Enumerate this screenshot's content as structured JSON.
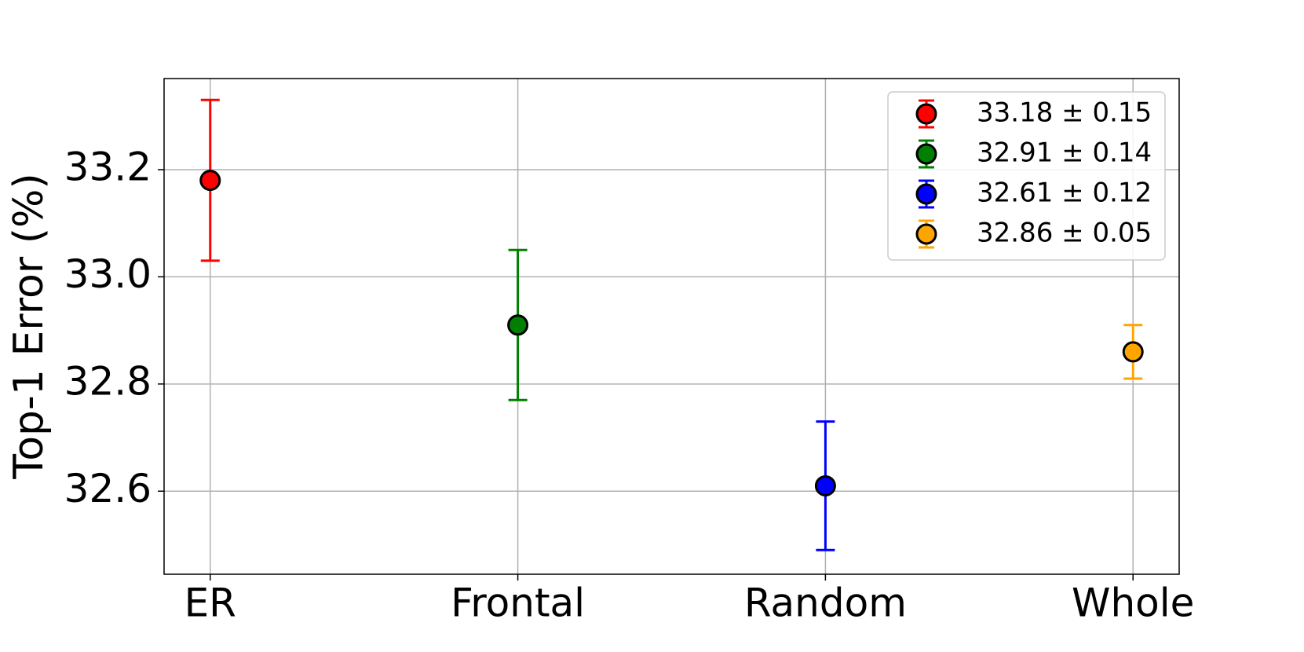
{
  "chart_data": {
    "type": "errorbar",
    "ylabel": "Top-1 Error (%)",
    "categories": [
      "ER",
      "Frontal",
      "Random",
      "Whole"
    ],
    "series": [
      {
        "name": "33.18 ± 0.15",
        "color": "red",
        "values": [
          33.18,
          null,
          null,
          null
        ],
        "errors": [
          0.15,
          null,
          null,
          null
        ]
      },
      {
        "name": "32.91 ± 0.14",
        "color": "green",
        "values": [
          null,
          32.91,
          null,
          null
        ],
        "errors": [
          null,
          0.14,
          null,
          null
        ]
      },
      {
        "name": "32.61 ± 0.12",
        "color": "blue",
        "values": [
          null,
          null,
          32.61,
          null
        ],
        "errors": [
          null,
          null,
          0.12,
          null
        ]
      },
      {
        "name": "32.86 ± 0.05",
        "color": "orange",
        "values": [
          null,
          null,
          null,
          32.86
        ],
        "errors": [
          null,
          null,
          null,
          0.05
        ]
      }
    ],
    "ylim": [
      32.445,
      33.37
    ],
    "yticks": [
      {
        "value": 32.6,
        "label": "32.6"
      },
      {
        "value": 32.8,
        "label": "32.8"
      },
      {
        "value": 33.0,
        "label": "33.0"
      },
      {
        "value": 33.2,
        "label": "33.2"
      }
    ],
    "grid": true,
    "legend": "upper right"
  }
}
